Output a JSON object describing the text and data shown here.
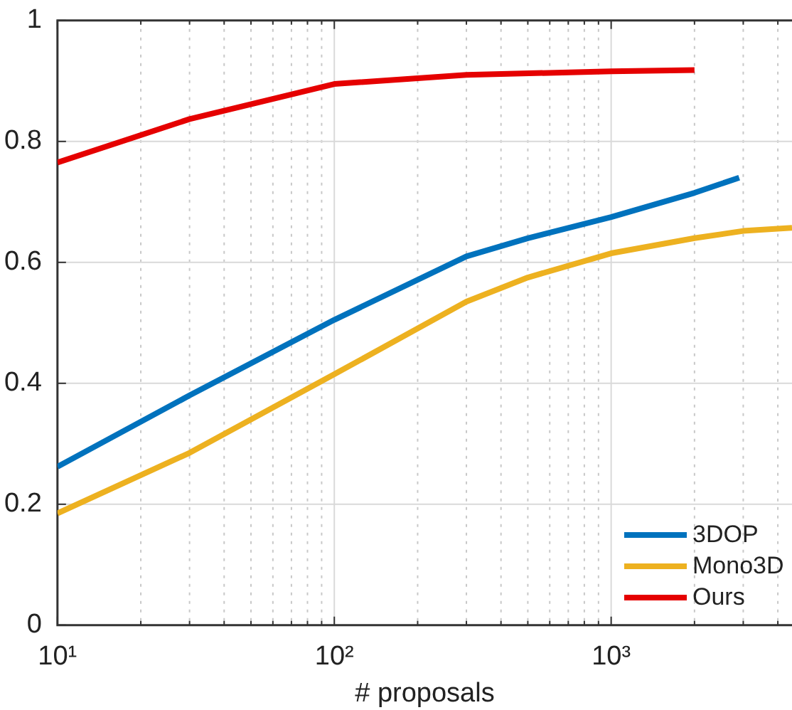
{
  "chart_data": {
    "type": "line",
    "xlabel": "# proposals",
    "log": "x",
    "grid": true,
    "legend": "bottom right",
    "line_style": "solid",
    "marker": "none",
    "xlim": [
      10,
      4500
    ],
    "xticks": [
      {
        "value": 10,
        "label": "10¹"
      },
      {
        "value": 20,
        "label": null
      },
      {
        "value": 30,
        "label": null
      },
      {
        "value": 40,
        "label": null
      },
      {
        "value": 50,
        "label": null
      },
      {
        "value": 60,
        "label": null
      },
      {
        "value": 70,
        "label": null
      },
      {
        "value": 80,
        "label": null
      },
      {
        "value": 90,
        "label": null
      },
      {
        "value": 100,
        "label": "10²"
      },
      {
        "value": 200,
        "label": null
      },
      {
        "value": 300,
        "label": null
      },
      {
        "value": 400,
        "label": null
      },
      {
        "value": 500,
        "label": null
      },
      {
        "value": 600,
        "label": null
      },
      {
        "value": 700,
        "label": null
      },
      {
        "value": 800,
        "label": null
      },
      {
        "value": 900,
        "label": null
      },
      {
        "value": 1000,
        "label": "10³"
      },
      {
        "value": 2000,
        "label": null
      },
      {
        "value": 3000,
        "label": null
      },
      {
        "value": 4000,
        "label": null
      }
    ],
    "ylim": [
      0,
      1
    ],
    "yticks": [
      0,
      0.2,
      0.4,
      0.6,
      0.8,
      1
    ],
    "series": [
      {
        "name": "3DOP",
        "color": "#0072bd",
        "x": [
          10,
          30,
          100,
          300,
          500,
          1000,
          2000,
          2900
        ],
        "values": [
          0.262,
          0.38,
          0.505,
          0.61,
          0.64,
          0.675,
          0.715,
          0.74
        ]
      },
      {
        "name": "Mono3D",
        "color": "#edb120",
        "x": [
          10,
          30,
          100,
          300,
          500,
          1000,
          2000,
          3000,
          4500
        ],
        "values": [
          0.185,
          0.285,
          0.415,
          0.535,
          0.575,
          0.615,
          0.64,
          0.652,
          0.657
        ]
      },
      {
        "name": "Ours",
        "color": "#e50000",
        "x": [
          10,
          30,
          100,
          300,
          1000,
          2000
        ],
        "values": [
          0.765,
          0.837,
          0.895,
          0.91,
          0.916,
          0.918
        ]
      }
    ]
  }
}
